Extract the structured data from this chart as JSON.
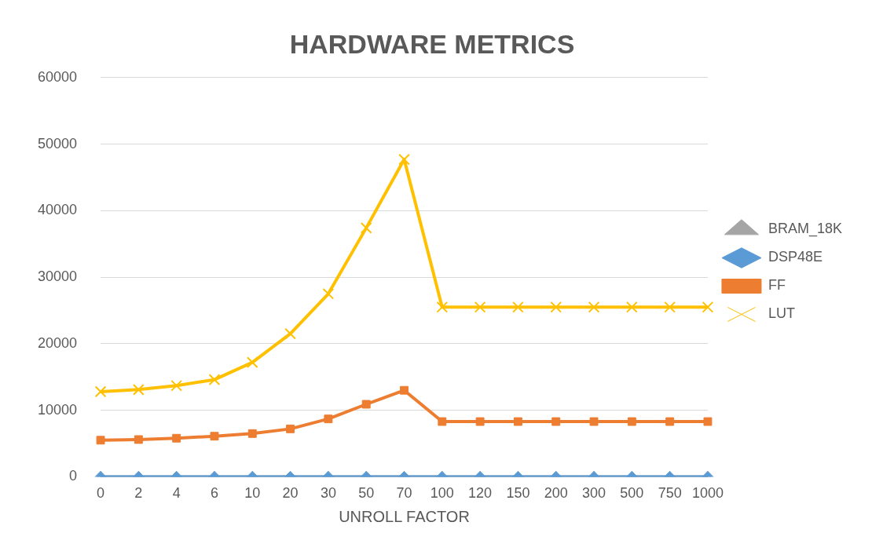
{
  "chart_data": {
    "type": "line",
    "title": "HARDWARE METRICS",
    "xlabel": "UNROLL FACTOR",
    "categories": [
      "0",
      "2",
      "4",
      "6",
      "10",
      "20",
      "30",
      "50",
      "70",
      "100",
      "120",
      "150",
      "200",
      "300",
      "500",
      "750",
      "1000"
    ],
    "series": [
      {
        "name": "BRAM_18K",
        "color": "#a5a5a5",
        "marker": "triangle",
        "values": [
          0,
          0,
          0,
          0,
          0,
          0,
          0,
          0,
          0,
          0,
          0,
          0,
          0,
          0,
          0,
          0,
          0
        ]
      },
      {
        "name": "DSP48E",
        "color": "#5b9bd5",
        "marker": "diamond",
        "values": [
          0,
          0,
          0,
          0,
          0,
          0,
          0,
          0,
          0,
          0,
          0,
          0,
          0,
          0,
          0,
          0,
          0
        ]
      },
      {
        "name": "FF",
        "color": "#ed7d31",
        "marker": "square",
        "values": [
          5500,
          5600,
          5800,
          6100,
          6500,
          7200,
          8700,
          10900,
          13000,
          8300,
          8300,
          8300,
          8300,
          8300,
          8300,
          8300,
          8300
        ]
      },
      {
        "name": "LUT",
        "color": "#ffc000",
        "marker": "cross",
        "values": [
          12800,
          13100,
          13700,
          14600,
          17200,
          21500,
          27500,
          37400,
          47700,
          25500,
          25500,
          25500,
          25500,
          25500,
          25500,
          25500,
          25500
        ]
      }
    ],
    "ylim": [
      0,
      60000
    ],
    "yticks": [
      0,
      10000,
      20000,
      30000,
      40000,
      50000,
      60000
    ],
    "grid": "y",
    "legend": "right"
  }
}
